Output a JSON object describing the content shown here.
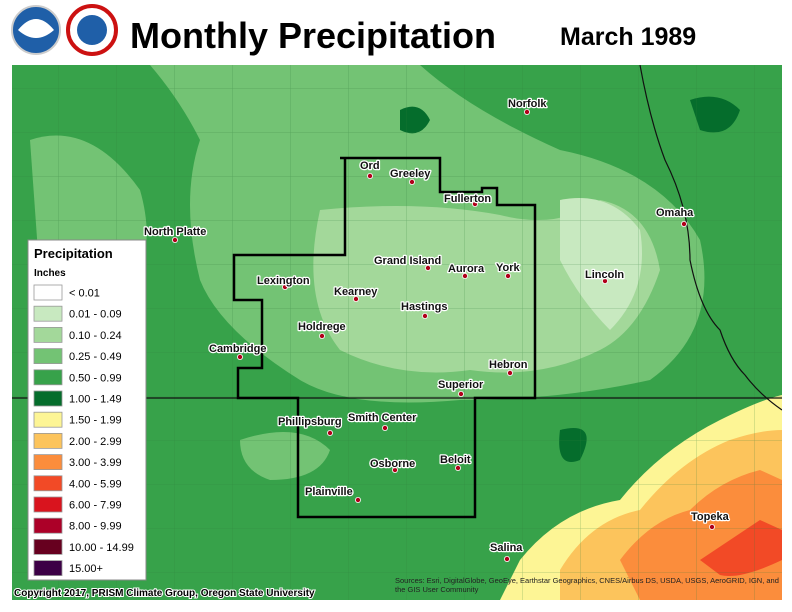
{
  "header": {
    "title": "Monthly Precipitation",
    "period": "March 1989"
  },
  "cities": [
    "Norfolk",
    "Ord",
    "Greeley",
    "Fullerton",
    "North Platte",
    "Omaha",
    "Grand Island",
    "Aurora",
    "York",
    "Lincoln",
    "Lexington",
    "Kearney",
    "Hastings",
    "Holdrege",
    "Cambridge",
    "Hebron",
    "Superior",
    "Phillipsburg",
    "Smith Center",
    "Beloit",
    "Osborne",
    "Plainville",
    "Topeka",
    "Salina"
  ],
  "legend": {
    "title": "Precipitation",
    "units": "Inches",
    "items": [
      {
        "label": "< 0.01",
        "color": "#ffffff"
      },
      {
        "label": "0.01 - 0.09",
        "color": "#c8e9c0"
      },
      {
        "label": "0.10 - 0.24",
        "color": "#a3d89a"
      },
      {
        "label": "0.25 - 0.49",
        "color": "#73c374"
      },
      {
        "label": "0.50 - 0.99",
        "color": "#37a24a"
      },
      {
        "label": "1.00 - 1.49",
        "color": "#056d2c"
      },
      {
        "label": "1.50 - 1.99",
        "color": "#fdf595"
      },
      {
        "label": "2.00 - 2.99",
        "color": "#fcc45c"
      },
      {
        "label": "3.00 - 3.99",
        "color": "#fb8d3c"
      },
      {
        "label": "4.00 - 5.99",
        "color": "#f24a26"
      },
      {
        "label": "6.00 - 7.99",
        "color": "#d9141e"
      },
      {
        "label": "8.00 - 9.99",
        "color": "#ac0028"
      },
      {
        "label": "10.00 - 14.99",
        "color": "#67001f"
      },
      {
        "label": "15.00+",
        "color": "#3c0046"
      }
    ]
  },
  "footer": {
    "copyright": "Copyright 2017, PRISM Climate Group, Oregon State University",
    "attribution": "Sources: Esri, DigitalGlobe, GeoEye, Earthstar Geographics, CNES/Airbus DS, USDA, USGS, AeroGRID, IGN, and the GIS User Community"
  }
}
